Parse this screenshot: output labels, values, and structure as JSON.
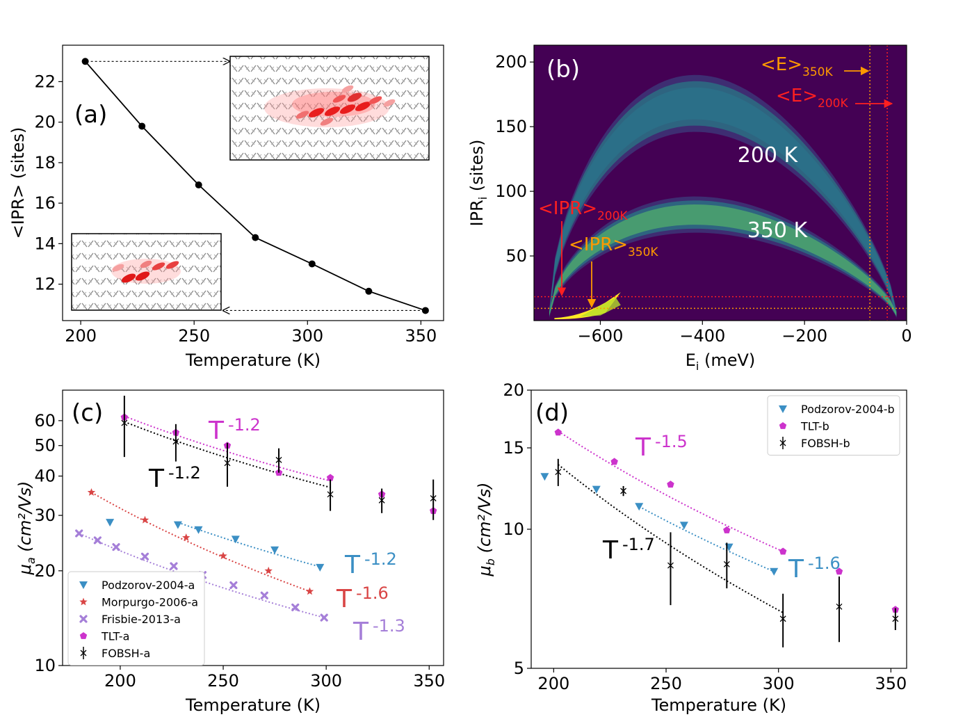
{
  "chart_data": [
    {
      "type": "line",
      "panel_label": "(a)",
      "xlabel": "Temperature (K)",
      "ylabel": "<IPR> (sites)",
      "xlim": [
        192,
        360
      ],
      "ylim": [
        10.2,
        23.8
      ],
      "xticks": [
        200,
        250,
        300,
        350
      ],
      "yticks": [
        12,
        14,
        16,
        18,
        20,
        22
      ],
      "series": [
        {
          "name": "<IPR>",
          "x": [
            202,
            227,
            252,
            277,
            302,
            327,
            352
          ],
          "y": [
            23.0,
            19.8,
            16.9,
            14.3,
            13.0,
            11.65,
            10.7
          ]
        }
      ],
      "insets": [
        "large delocalized polaron at 200 K",
        "small localized polaron at 350 K"
      ]
    },
    {
      "type": "heatmap",
      "panel_label": "(b)",
      "xlabel": "E",
      "xlabel_sub": "i",
      "xlabel_unit": " (meV)",
      "ylabel": "IPR",
      "ylabel_sub": "i",
      "ylabel_unit": " (sites)",
      "xlim": [
        -730,
        0
      ],
      "ylim": [
        0,
        213
      ],
      "xticks": [
        -600,
        -400,
        -200,
        0
      ],
      "yticks": [
        50,
        100,
        150,
        200
      ],
      "annotations": {
        "label_200": "200 K",
        "label_350": "350 K",
        "ipr200": "<IPR>",
        "ipr200_sub": "200K",
        "ipr350": "<IPR>",
        "ipr350_sub": "350K",
        "e350": "<E>",
        "e350_sub": "350K",
        "e200": "<E>",
        "e200_sub": "200K"
      },
      "mean_ipr": {
        "200K": 18.5,
        "350K": 9.5
      },
      "mean_e": {
        "200K": -38,
        "350K": -72
      }
    },
    {
      "type": "scatter",
      "panel_label": "(c)",
      "xlabel": "Temperature (K)",
      "ylabel": "μ",
      "ylabel_sub": "a",
      "ylabel_unit": " (cm²/Vs)",
      "yscale": "log",
      "xlim": [
        172,
        357
      ],
      "ylim": [
        10,
        75
      ],
      "xticks": [
        200,
        250,
        300,
        350
      ],
      "yticks": [
        10,
        20,
        30,
        40,
        50,
        60
      ],
      "series": [
        {
          "name": "Podzorov-2004-a",
          "color": "#3b8fc4",
          "marker": "triangle-down",
          "x": [
            195,
            228,
            238,
            256,
            275,
            297
          ],
          "y": [
            28.5,
            28.0,
            27.0,
            25.2,
            23.3,
            20.5
          ]
        },
        {
          "name": "Morpurgo-2006-a",
          "color": "#d94545",
          "marker": "star",
          "x": [
            186,
            212,
            232,
            250,
            272,
            292
          ],
          "y": [
            35.5,
            29.0,
            25.5,
            22.3,
            20.0,
            17.2
          ]
        },
        {
          "name": "Frisbie-2013-a",
          "color": "#a57fd8",
          "marker": "x-thick",
          "x": [
            180,
            189,
            198,
            212,
            226,
            240,
            255,
            270,
            285,
            299
          ],
          "y": [
            26.3,
            25.0,
            23.8,
            22.2,
            20.7,
            19.4,
            18.0,
            16.7,
            15.3,
            14.2
          ]
        },
        {
          "name": "TLT-a",
          "color": "#cc33cc",
          "marker": "pentagon",
          "x": [
            202,
            227,
            252,
            277,
            302,
            327,
            352
          ],
          "y": [
            61.5,
            55.0,
            50.0,
            41.0,
            39.5,
            35.0,
            31.0
          ]
        },
        {
          "name": "FOBSH-a",
          "color": "#000000",
          "marker": "x-errorbar",
          "x": [
            202,
            227,
            252,
            277,
            302,
            327,
            352
          ],
          "y": [
            59.0,
            51.5,
            44.0,
            45.0,
            35.0,
            33.5,
            34.0
          ],
          "err": [
            13.0,
            7.0,
            7.0,
            4.0,
            4.0,
            3.0,
            5.0
          ]
        }
      ],
      "fits": [
        {
          "color": "#cc33cc",
          "x": [
            202,
            302
          ],
          "y": [
            62.0,
            38.6
          ],
          "label": "T",
          "exp": "-1.2"
        },
        {
          "color": "#000000",
          "x": [
            202,
            302
          ],
          "y": [
            59.5,
            36.8
          ],
          "label": "T",
          "exp": "-1.2"
        },
        {
          "color": "#3b8fc4",
          "x": [
            228,
            297
          ],
          "y": [
            28.5,
            20.6
          ],
          "label": "T",
          "exp": "-1.2"
        },
        {
          "color": "#d94545",
          "x": [
            186,
            292
          ],
          "y": [
            35.5,
            17.2
          ],
          "label": "T",
          "exp": "-1.6"
        },
        {
          "color": "#a57fd8",
          "x": [
            180,
            299
          ],
          "y": [
            26.3,
            14.2
          ],
          "label": "T",
          "exp": "-1.3"
        }
      ]
    },
    {
      "type": "scatter",
      "panel_label": "(d)",
      "xlabel": "Temperature (K)",
      "ylabel": "μ",
      "ylabel_sub": "b",
      "ylabel_unit": " (cm²/Vs)",
      "yscale": "log",
      "xlim": [
        190,
        357
      ],
      "ylim": [
        5,
        20
      ],
      "xticks": [
        200,
        250,
        300,
        350
      ],
      "yticks": [
        5,
        10,
        15,
        20
      ],
      "series": [
        {
          "name": "Podzorov-2004-b",
          "color": "#3b8fc4",
          "marker": "triangle-down",
          "x": [
            196,
            219,
            238,
            258,
            278,
            298
          ],
          "y": [
            13.0,
            12.2,
            11.2,
            10.2,
            9.15,
            8.1
          ]
        },
        {
          "name": "TLT-b",
          "color": "#cc33cc",
          "marker": "pentagon",
          "x": [
            202,
            227,
            252,
            277,
            302,
            327,
            352
          ],
          "y": [
            16.2,
            14.0,
            12.5,
            9.95,
            8.95,
            8.1,
            6.7
          ]
        },
        {
          "name": "FOBSH-b",
          "color": "#000000",
          "marker": "x-errorbar",
          "x": [
            202,
            231,
            252,
            277,
            302,
            327,
            352
          ],
          "y": [
            13.3,
            12.1,
            8.35,
            8.4,
            6.4,
            6.8,
            6.4
          ],
          "err": [
            0.9,
            0.3,
            1.5,
            0.95,
            0.85,
            1.1,
            0.35
          ]
        }
      ],
      "fits": [
        {
          "color": "#cc33cc",
          "x": [
            202,
            302
          ],
          "y": [
            16.3,
            8.95
          ],
          "label": "T",
          "exp": "-1.5"
        },
        {
          "color": "#000000",
          "x": [
            202,
            302
          ],
          "y": [
            13.8,
            6.6
          ],
          "label": "T",
          "exp": "-1.7"
        },
        {
          "color": "#3b8fc4",
          "x": [
            238,
            298
          ],
          "y": [
            11.2,
            8.1
          ],
          "label": "T",
          "exp": "-1.6"
        }
      ]
    }
  ]
}
